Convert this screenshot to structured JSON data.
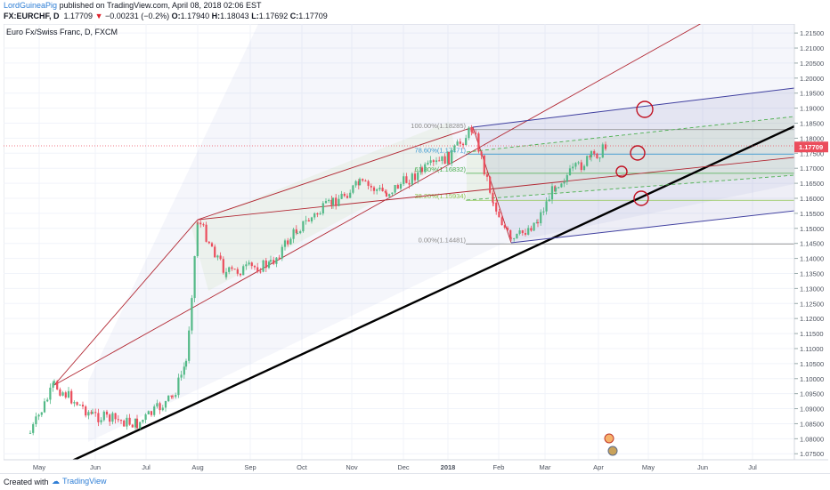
{
  "header": {
    "author": "LordGuineaPig",
    "published": "published on TradingView.com, April 08, 2018 02:06 EST",
    "symbol": "FX:EURCHF, D",
    "last": "1.17709",
    "change": "−0.00231 (−0.2%)",
    "o_label": "O:",
    "o": "1.17940",
    "h_label": "H:",
    "h": "1.18043",
    "l_label": "L:",
    "l": "1.17692",
    "c_label": "C:",
    "c": "1.17709"
  },
  "footer": {
    "created_with": "Created with",
    "brand": "TradingView"
  },
  "colors": {
    "up": "#53b987",
    "down": "#eb4d5c",
    "trend": "#000000",
    "pitchfork": "#b22833",
    "channel": "#3f3f9f",
    "fib_78": "#3d9ad1",
    "fib_61": "#4caf50",
    "fib_38": "#8bc34a",
    "fib_0": "#8a8a8a",
    "circle": "#c01020"
  },
  "chart_data": {
    "type": "candlestick",
    "title": "Euro Fx/Swiss Franc, D, FXCM",
    "y_range": [
      1.073,
      1.218
    ],
    "y_ticks": [
      "1.07500",
      "1.08000",
      "1.08500",
      "1.09000",
      "1.09500",
      "1.10000",
      "1.10500",
      "1.11000",
      "1.11500",
      "1.12000",
      "1.12500",
      "1.13000",
      "1.13500",
      "1.14000",
      "1.14500",
      "1.15000",
      "1.15500",
      "1.16000",
      "1.16500",
      "1.17000",
      "1.17500",
      "1.18000",
      "1.18500",
      "1.19000",
      "1.19500",
      "1.20000",
      "1.20500",
      "1.21000",
      "1.21500"
    ],
    "x_ticks": [
      "May",
      "Jun",
      "Jul",
      "Aug",
      "Sep",
      "Oct",
      "Nov",
      "Dec",
      "2018",
      "Feb",
      "Mar",
      "Apr",
      "May",
      "Jun",
      "Jul"
    ],
    "current_price_label": "1.17709",
    "current_price": 1.17709,
    "fib_levels": [
      {
        "label": "100.00%(1.18285)",
        "value": 1.18285
      },
      {
        "label": "78.60%(1.17471)",
        "value": 1.17471
      },
      {
        "label": "61.80%(1.16832)",
        "value": 1.16832
      },
      {
        "label": "38.20%(1.15934)",
        "value": 1.15934
      },
      {
        "label": "0.00%(1.14481)",
        "value": 1.14481
      }
    ],
    "key_points": [
      {
        "x": "May 10 2017",
        "y": 1.098
      },
      {
        "x": "Jul 31 2017",
        "y": 1.153
      },
      {
        "x": "Jan 10 2018",
        "y": 1.1828
      },
      {
        "x": "Feb 09 2018",
        "y": 1.1448
      },
      {
        "x": "Apr 06 2018",
        "y": 1.1771
      }
    ],
    "grid": true,
    "price_axis": "right"
  }
}
